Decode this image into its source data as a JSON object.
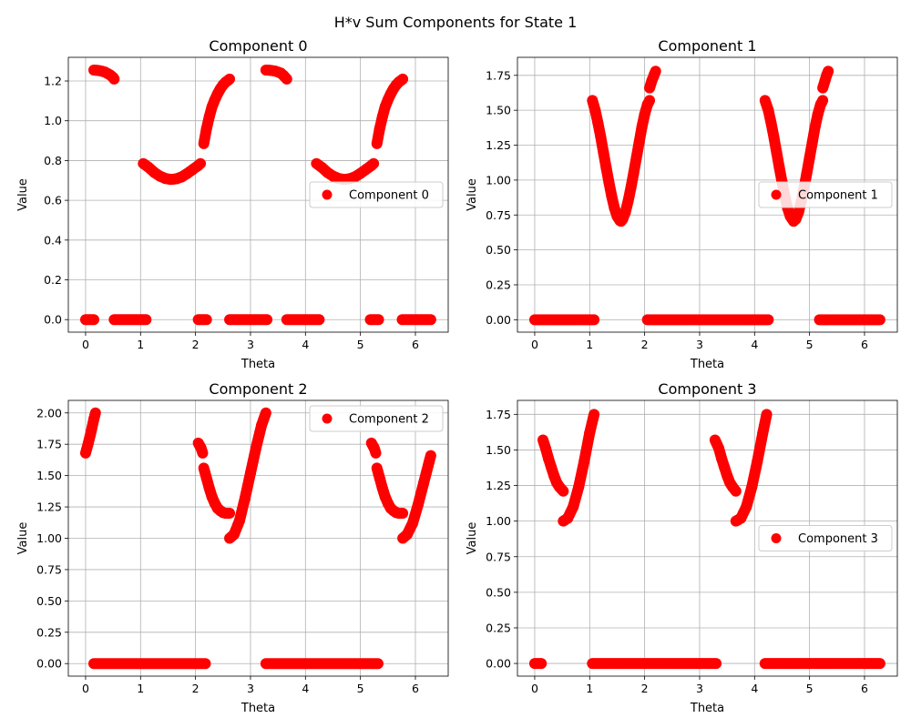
{
  "figure": {
    "title": "H*v Sum Components for State 1"
  },
  "colors": {
    "marker": "#ff0000",
    "grid": "#b0b0b0",
    "axis": "#000000",
    "legend_border": "#cccccc"
  },
  "chart_data": [
    {
      "type": "scatter",
      "title": "Component 0",
      "xlabel": "Theta",
      "ylabel": "Value",
      "xlim": [
        -0.314,
        6.597
      ],
      "ylim": [
        -0.063,
        1.319
      ],
      "xticks": [
        0,
        1,
        2,
        3,
        4,
        5,
        6
      ],
      "xtick_labels": [
        "0",
        "1",
        "2",
        "3",
        "4",
        "5",
        "6"
      ],
      "yticks": [
        0.0,
        0.2,
        0.4,
        0.6,
        0.8,
        1.0,
        1.2
      ],
      "ytick_labels": [
        "0.0",
        "0.2",
        "0.4",
        "0.6",
        "0.8",
        "1.0",
        "1.2"
      ],
      "grid": true,
      "legend_position": "center-right",
      "series": [
        {
          "name": "Component 0",
          "marker": "circle",
          "segments": [
            {
              "x": [
                0.0,
                0.15
              ],
              "y": [
                0,
                0
              ]
            },
            {
              "x": [
                0.15,
                0.2,
                0.25,
                0.3,
                0.35,
                0.4,
                0.45,
                0.5,
                0.52
              ],
              "y": [
                1.255,
                1.254,
                1.252,
                1.249,
                1.245,
                1.238,
                1.23,
                1.218,
                1.21
              ]
            },
            {
              "x": [
                0.52,
                1.1
              ],
              "y": [
                0,
                0
              ]
            },
            {
              "x": [
                1.05,
                1.15,
                1.25,
                1.35,
                1.45,
                1.55,
                1.65,
                1.75,
                1.85,
                1.95,
                2.05,
                2.09
              ],
              "y": [
                0.785,
                0.765,
                0.74,
                0.722,
                0.71,
                0.705,
                0.708,
                0.718,
                0.735,
                0.755,
                0.775,
                0.785
              ]
            },
            {
              "x": [
                2.05,
                2.2
              ],
              "y": [
                0,
                0
              ]
            },
            {
              "x": [
                2.15,
                2.2,
                2.25,
                2.3,
                2.35,
                2.4,
                2.45,
                2.5,
                2.55,
                2.6,
                2.62
              ],
              "y": [
                0.885,
                0.96,
                1.02,
                1.07,
                1.105,
                1.135,
                1.16,
                1.18,
                1.195,
                1.205,
                1.21
              ]
            },
            {
              "x": [
                2.62,
                3.3
              ],
              "y": [
                0,
                0
              ]
            },
            {
              "x": [
                3.28,
                3.35,
                3.45,
                3.55,
                3.6,
                3.66
              ],
              "y": [
                1.255,
                1.254,
                1.25,
                1.24,
                1.228,
                1.21
              ]
            },
            {
              "x": [
                3.66,
                4.25
              ],
              "y": [
                0,
                0
              ]
            },
            {
              "x": [
                4.2,
                4.3,
                4.4,
                4.5,
                4.6,
                4.7,
                4.8,
                4.9,
                5.0,
                5.1,
                5.2,
                5.24
              ],
              "y": [
                0.785,
                0.765,
                0.74,
                0.722,
                0.71,
                0.705,
                0.708,
                0.718,
                0.735,
                0.755,
                0.775,
                0.785
              ]
            },
            {
              "x": [
                5.18,
                5.33
              ],
              "y": [
                0,
                0
              ]
            },
            {
              "x": [
                5.3,
                5.35,
                5.4,
                5.45,
                5.5,
                5.55,
                5.6,
                5.65,
                5.7,
                5.75,
                5.77
              ],
              "y": [
                0.885,
                0.96,
                1.02,
                1.07,
                1.105,
                1.135,
                1.16,
                1.18,
                1.195,
                1.205,
                1.21
              ]
            },
            {
              "x": [
                5.76,
                6.28
              ],
              "y": [
                0,
                0
              ]
            }
          ]
        }
      ]
    },
    {
      "type": "scatter",
      "title": "Component 1",
      "xlabel": "Theta",
      "ylabel": "Value",
      "xlim": [
        -0.314,
        6.597
      ],
      "ylim": [
        -0.089,
        1.879
      ],
      "xticks": [
        0,
        1,
        2,
        3,
        4,
        5,
        6
      ],
      "xtick_labels": [
        "0",
        "1",
        "2",
        "3",
        "4",
        "5",
        "6"
      ],
      "yticks": [
        0.0,
        0.25,
        0.5,
        0.75,
        1.0,
        1.25,
        1.5,
        1.75
      ],
      "ytick_labels": [
        "0.00",
        "0.25",
        "0.50",
        "0.75",
        "1.00",
        "1.25",
        "1.50",
        "1.75"
      ],
      "grid": true,
      "legend_position": "center-right",
      "series": [
        {
          "name": "Component 1",
          "marker": "circle",
          "segments": [
            {
              "x": [
                0.0,
                1.08
              ],
              "y": [
                0,
                0
              ]
            },
            {
              "x": [
                1.05,
                1.1,
                1.15,
                1.2,
                1.25,
                1.3,
                1.35,
                1.4,
                1.45,
                1.5,
                1.55,
                1.57
              ],
              "y": [
                1.57,
                1.5,
                1.41,
                1.31,
                1.2,
                1.09,
                0.985,
                0.885,
                0.8,
                0.74,
                0.71,
                0.705
              ]
            },
            {
              "x": [
                1.57,
                1.6,
                1.65,
                1.7,
                1.75,
                1.8,
                1.85,
                1.9,
                1.95,
                2.0,
                2.05,
                2.09
              ],
              "y": [
                0.705,
                0.72,
                0.77,
                0.85,
                0.945,
                1.05,
                1.16,
                1.27,
                1.38,
                1.47,
                1.54,
                1.57
              ]
            },
            {
              "x": [
                2.09,
                2.13,
                2.17,
                2.2
              ],
              "y": [
                1.66,
                1.71,
                1.75,
                1.78
              ]
            },
            {
              "x": [
                2.05,
                4.25
              ],
              "y": [
                0,
                0
              ]
            },
            {
              "x": [
                4.19,
                4.25,
                4.3,
                4.35,
                4.4,
                4.45,
                4.5,
                4.55,
                4.6,
                4.65,
                4.71
              ],
              "y": [
                1.57,
                1.5,
                1.41,
                1.31,
                1.2,
                1.09,
                0.985,
                0.885,
                0.8,
                0.74,
                0.705
              ]
            },
            {
              "x": [
                4.71,
                4.75,
                4.8,
                4.85,
                4.9,
                4.95,
                5.0,
                5.05,
                5.1,
                5.15,
                5.2,
                5.24
              ],
              "y": [
                0.705,
                0.72,
                0.77,
                0.85,
                0.945,
                1.05,
                1.16,
                1.27,
                1.38,
                1.47,
                1.54,
                1.57
              ]
            },
            {
              "x": [
                5.24,
                5.28,
                5.31,
                5.34
              ],
              "y": [
                1.66,
                1.71,
                1.75,
                1.78
              ]
            },
            {
              "x": [
                5.18,
                6.28
              ],
              "y": [
                0,
                0
              ]
            }
          ]
        }
      ]
    },
    {
      "type": "scatter",
      "title": "Component 2",
      "xlabel": "Theta",
      "ylabel": "Value",
      "xlim": [
        -0.314,
        6.597
      ],
      "ylim": [
        -0.1,
        2.1
      ],
      "xticks": [
        0,
        1,
        2,
        3,
        4,
        5,
        6
      ],
      "xtick_labels": [
        "0",
        "1",
        "2",
        "3",
        "4",
        "5",
        "6"
      ],
      "yticks": [
        0.0,
        0.25,
        0.5,
        0.75,
        1.0,
        1.25,
        1.5,
        1.75,
        2.0
      ],
      "ytick_labels": [
        "0.00",
        "0.25",
        "0.50",
        "0.75",
        "1.00",
        "1.25",
        "1.50",
        "1.75",
        "2.00"
      ],
      "grid": true,
      "legend_position": "upper-right",
      "series": [
        {
          "name": "Component 2",
          "marker": "circle",
          "segments": [
            {
              "x": [
                0.0,
                0.05,
                0.1,
                0.15,
                0.18
              ],
              "y": [
                1.68,
                1.76,
                1.85,
                1.95,
                2.0
              ]
            },
            {
              "x": [
                0.15,
                2.18
              ],
              "y": [
                0,
                0
              ]
            },
            {
              "x": [
                2.05,
                2.1,
                2.13
              ],
              "y": [
                1.76,
                1.72,
                1.68
              ]
            },
            {
              "x": [
                2.15,
                2.2,
                2.25,
                2.3,
                2.35,
                2.4,
                2.45,
                2.5,
                2.55,
                2.62
              ],
              "y": [
                1.56,
                1.48,
                1.4,
                1.33,
                1.28,
                1.24,
                1.22,
                1.205,
                1.2,
                1.2
              ]
            },
            {
              "x": [
                2.62,
                2.7,
                2.8,
                2.9,
                3.0,
                3.1,
                3.2,
                3.28
              ],
              "y": [
                1.0,
                1.03,
                1.14,
                1.32,
                1.52,
                1.72,
                1.9,
                2.0
              ]
            },
            {
              "x": [
                3.28,
                5.32
              ],
              "y": [
                0,
                0
              ]
            },
            {
              "x": [
                5.2,
                5.25,
                5.28
              ],
              "y": [
                1.76,
                1.72,
                1.68
              ]
            },
            {
              "x": [
                5.3,
                5.35,
                5.4,
                5.45,
                5.5,
                5.55,
                5.6,
                5.65,
                5.7,
                5.77
              ],
              "y": [
                1.56,
                1.48,
                1.4,
                1.33,
                1.28,
                1.24,
                1.22,
                1.205,
                1.2,
                1.2
              ]
            },
            {
              "x": [
                5.77,
                5.85,
                5.95,
                6.05,
                6.15,
                6.25,
                6.28
              ],
              "y": [
                1.0,
                1.03,
                1.12,
                1.27,
                1.44,
                1.61,
                1.66
              ]
            }
          ]
        }
      ]
    },
    {
      "type": "scatter",
      "title": "Component 3",
      "xlabel": "Theta",
      "ylabel": "Value",
      "xlim": [
        -0.314,
        6.597
      ],
      "ylim": [
        -0.089,
        1.848
      ],
      "xticks": [
        0,
        1,
        2,
        3,
        4,
        5,
        6
      ],
      "xtick_labels": [
        "0",
        "1",
        "2",
        "3",
        "4",
        "5",
        "6"
      ],
      "yticks": [
        0.0,
        0.25,
        0.5,
        0.75,
        1.0,
        1.25,
        1.5,
        1.75
      ],
      "ytick_labels": [
        "0.00",
        "0.25",
        "0.50",
        "0.75",
        "1.00",
        "1.25",
        "1.50",
        "1.75"
      ],
      "grid": true,
      "legend_position": "center-right",
      "series": [
        {
          "name": "Component 3",
          "marker": "circle",
          "segments": [
            {
              "x": [
                0.0,
                0.12
              ],
              "y": [
                0,
                0
              ]
            },
            {
              "x": [
                0.15,
                0.2,
                0.25,
                0.3,
                0.35,
                0.4,
                0.45,
                0.52
              ],
              "y": [
                1.57,
                1.51,
                1.44,
                1.38,
                1.32,
                1.27,
                1.24,
                1.21
              ]
            },
            {
              "x": [
                0.52,
                0.6,
                0.7,
                0.8,
                0.9,
                1.0,
                1.08
              ],
              "y": [
                1.0,
                1.02,
                1.1,
                1.24,
                1.42,
                1.62,
                1.75
              ]
            },
            {
              "x": [
                1.05,
                3.3
              ],
              "y": [
                0,
                0
              ]
            },
            {
              "x": [
                3.28,
                3.35,
                3.4,
                3.45,
                3.5,
                3.55,
                3.6,
                3.66
              ],
              "y": [
                1.57,
                1.51,
                1.44,
                1.38,
                1.32,
                1.27,
                1.24,
                1.21
              ]
            },
            {
              "x": [
                3.66,
                3.75,
                3.85,
                3.95,
                4.05,
                4.15,
                4.22
              ],
              "y": [
                1.0,
                1.02,
                1.1,
                1.24,
                1.42,
                1.62,
                1.75
              ]
            },
            {
              "x": [
                4.19,
                6.28
              ],
              "y": [
                0,
                0
              ]
            }
          ]
        }
      ]
    }
  ]
}
